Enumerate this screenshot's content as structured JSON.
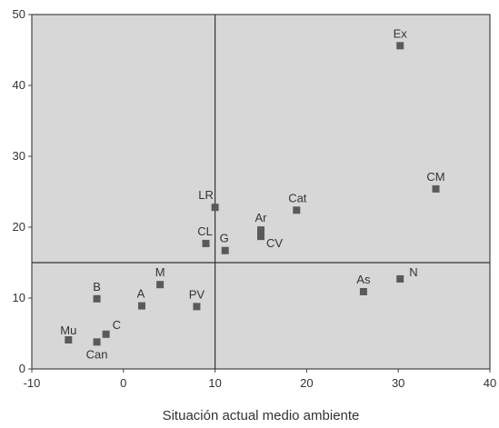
{
  "chart_data": {
    "type": "scatter",
    "title": "",
    "xlabel": "Situación actual medio ambiente",
    "ylabel": "",
    "xlim": [
      -10,
      40
    ],
    "ylim": [
      0,
      50
    ],
    "xticks": [
      -10,
      0,
      10,
      20,
      30,
      40
    ],
    "yticks": [
      0,
      10,
      20,
      30,
      40,
      50
    ],
    "grid": false,
    "reference_lines": {
      "x": 10,
      "y": 15
    },
    "colors": {
      "plot_background": "#d7d7d7",
      "marker": "#5a5a5a",
      "axis": "#444444",
      "reference_line": "#333333",
      "text": "#333333"
    },
    "points": [
      {
        "label": "Ex",
        "x": 30.2,
        "y": 45.6
      },
      {
        "label": "CM",
        "x": 34.1,
        "y": 25.4
      },
      {
        "label": "Cat",
        "x": 18.9,
        "y": 22.4
      },
      {
        "label": "LR",
        "x": 10.0,
        "y": 22.8
      },
      {
        "label": "Ar",
        "x": 15.0,
        "y": 19.6
      },
      {
        "label": "CV",
        "x": 15.0,
        "y": 18.7
      },
      {
        "label": "CL",
        "x": 9.0,
        "y": 17.7
      },
      {
        "label": "G",
        "x": 11.1,
        "y": 16.7
      },
      {
        "label": "N",
        "x": 30.2,
        "y": 12.7
      },
      {
        "label": "As",
        "x": 26.2,
        "y": 10.9
      },
      {
        "label": "M",
        "x": 4.0,
        "y": 11.9
      },
      {
        "label": "B",
        "x": -2.9,
        "y": 9.9
      },
      {
        "label": "A",
        "x": 2.0,
        "y": 8.9
      },
      {
        "label": "PV",
        "x": 8.0,
        "y": 8.8
      },
      {
        "label": "C",
        "x": -1.9,
        "y": 4.9
      },
      {
        "label": "Mu",
        "x": -6.0,
        "y": 4.1
      },
      {
        "label": "Can",
        "x": -2.9,
        "y": 3.8
      }
    ]
  }
}
